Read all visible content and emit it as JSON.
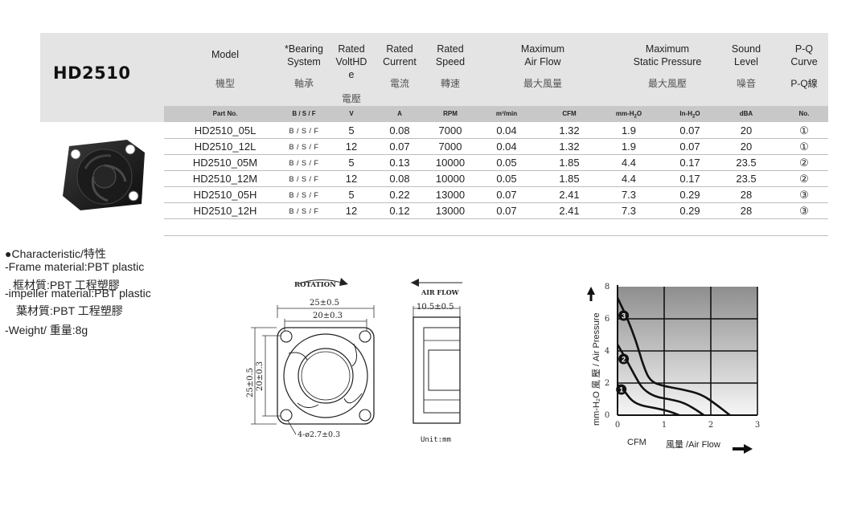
{
  "model": "HD2510",
  "headers": {
    "model": {
      "en": "Model",
      "cn": "機型"
    },
    "bearing": {
      "en1": "*Bearing",
      "en2": "System",
      "cn": "軸承"
    },
    "voltage": {
      "en1": "Rated",
      "en2": "VoltHD",
      "en3": "e",
      "cn": "電壓"
    },
    "current": {
      "en1": "Rated",
      "en2": "Current",
      "cn": "電流"
    },
    "speed": {
      "en1": "Rated",
      "en2": "Speed",
      "cn": "轉速"
    },
    "airflow": {
      "en1": "Maximum",
      "en2": "Air Flow",
      "cn": "最大風量"
    },
    "pressure": {
      "en1": "Maximum",
      "en2": "Static Pressure",
      "cn": "最大風壓"
    },
    "sound": {
      "en1": "Sound",
      "en2": "Level",
      "cn": "噪音"
    },
    "pq": {
      "en1": "P-Q",
      "en2": "Curve",
      "cn": "P-Q線"
    }
  },
  "subheaders": [
    "Part No.",
    "B / S / F",
    "V",
    "A",
    "RPM",
    "m³/min",
    "CFM",
    "mm-H",
    "In-H",
    "dBA",
    "No."
  ],
  "sub_o": "O",
  "sub_2": "2",
  "rows": [
    [
      "HD2510_05L",
      "B / S / F",
      "5",
      "0.08",
      "7000",
      "0.04",
      "1.32",
      "1.9",
      "0.07",
      "20",
      "①"
    ],
    [
      "HD2510_12L",
      "B / S / F",
      "12",
      "0.07",
      "7000",
      "0.04",
      "1.32",
      "1.9",
      "0.07",
      "20",
      "①"
    ],
    [
      "HD2510_05M",
      "B / S / F",
      "5",
      "0.13",
      "10000",
      "0.05",
      "1.85",
      "4.4",
      "0.17",
      "23.5",
      "②"
    ],
    [
      "HD2510_12M",
      "B / S / F",
      "12",
      "0.08",
      "10000",
      "0.05",
      "1.85",
      "4.4",
      "0.17",
      "23.5",
      "②"
    ],
    [
      "HD2510_05H",
      "B / S / F",
      "5",
      "0.22",
      "13000",
      "0.07",
      "2.41",
      "7.3",
      "0.29",
      "28",
      "③"
    ],
    [
      "HD2510_12H",
      "B / S / F",
      "12",
      "0.12",
      "13000",
      "0.07",
      "2.41",
      "7.3",
      "0.29",
      "28",
      "③"
    ]
  ],
  "notes": {
    "title": "●Characteristic/特性",
    "frame": "-Frame material:PBT plastic",
    "frame_cn": "框材質:PBT 工程塑膠",
    "impeller": "-impeller material:PBT plastic",
    "impeller_cn": "葉材質:PBT 工程塑膠",
    "weight": "-Weight/ 重量:8g"
  },
  "drawing": {
    "rotation": "ROTATION",
    "air_flow": "AIR FLOW",
    "dim_outer": "25±0.5",
    "dim_inner": "20±0.3",
    "dim_depth": "10.5±0.5",
    "dim_hole": "4-ø2.7±0.3",
    "unit": "Unit:mm"
  },
  "chart_data": {
    "type": "line",
    "xlabel": "CFM",
    "xlabel2": "風量 /Air Flow",
    "ylabel": "mm-H₂O 風 壓 / Air Pressure",
    "xlim": [
      0,
      3
    ],
    "ylim": [
      0,
      8
    ],
    "x_ticks": [
      "0",
      "1",
      "2",
      "3"
    ],
    "y_ticks": [
      "0",
      "2",
      "4",
      "6",
      "8"
    ],
    "series": [
      {
        "name": "1",
        "x": [
          0,
          0.15,
          0.3,
          0.5,
          0.8,
          1.1,
          1.32
        ],
        "y": [
          1.9,
          1.5,
          0.9,
          0.6,
          0.45,
          0.25,
          0
        ]
      },
      {
        "name": "2",
        "x": [
          0,
          0.2,
          0.4,
          0.55,
          0.8,
          1.1,
          1.4,
          1.65,
          1.85
        ],
        "y": [
          4.4,
          3.4,
          2.3,
          1.6,
          1.15,
          1.0,
          0.8,
          0.4,
          0
        ]
      },
      {
        "name": "3",
        "x": [
          0,
          0.2,
          0.4,
          0.55,
          0.7,
          1.0,
          1.4,
          1.8,
          2.1,
          2.41
        ],
        "y": [
          7.3,
          6.1,
          4.6,
          3.1,
          2.1,
          1.8,
          1.6,
          1.3,
          0.7,
          0
        ]
      }
    ]
  }
}
